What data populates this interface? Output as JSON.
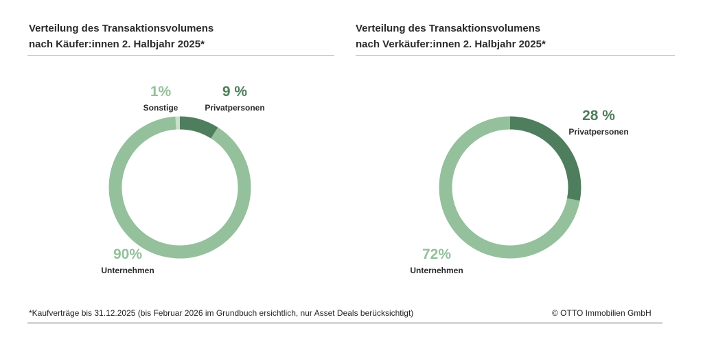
{
  "colors": {
    "dark": "#4e7e5d",
    "light": "#94c09c",
    "other": "#c9e0ca"
  },
  "chart_data": [
    {
      "type": "pie",
      "donut": true,
      "title": "Verteilung des Transaktionsvolumens nach Käufer:innen 2. Halbjahr 2025*",
      "title_lines": [
        "Verteilung des Transaktionsvolumens",
        "nach Käufer:innen 2. Halbjahr 2025*"
      ],
      "slices": [
        {
          "label": "Privatpersonen",
          "value": 9,
          "value_label": "9 %",
          "color": "dark"
        },
        {
          "label": "Unternehmen",
          "value": 90,
          "value_label": "90%",
          "color": "light"
        },
        {
          "label": "Sonstige",
          "value": 1,
          "value_label": "1%",
          "color": "other"
        }
      ]
    },
    {
      "type": "pie",
      "donut": true,
      "title": "Verteilung des Transaktionsvolumens nach Verkäufer:innen 2. Halbjahr 2025*",
      "title_lines": [
        "Verteilung des Transaktionsvolumens",
        "nach Verkäufer:innen 2. Halbjahr 2025*"
      ],
      "slices": [
        {
          "label": "Privatpersonen",
          "value": 28,
          "value_label": "28 %",
          "color": "dark"
        },
        {
          "label": "Unternehmen",
          "value": 72,
          "value_label": "72%",
          "color": "light"
        }
      ]
    }
  ],
  "footnote": "*Kaufverträge bis 31.12.2025 (bis Februar 2026 im Grundbuch ersichtlich, nur Asset Deals berücksichtigt)",
  "copyright": "© OTTO Immobilien GmbH"
}
